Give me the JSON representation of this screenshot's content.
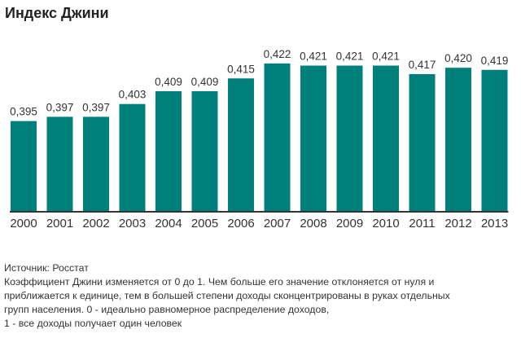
{
  "chart_data": {
    "type": "bar",
    "title": "Индекс Джини",
    "categories": [
      "2000",
      "2001",
      "2002",
      "2003",
      "2004",
      "2005",
      "2006",
      "2007",
      "2008",
      "2009",
      "2010",
      "2011",
      "2012",
      "2013"
    ],
    "values": [
      0.395,
      0.397,
      0.397,
      0.403,
      0.409,
      0.409,
      0.415,
      0.422,
      0.421,
      0.421,
      0.421,
      0.417,
      0.42,
      0.419
    ],
    "value_labels": [
      "0,395",
      "0,397",
      "0,397",
      "0,403",
      "0,409",
      "0,409",
      "0,415",
      "0,422",
      "0,421",
      "0,421",
      "0,421",
      "0,417",
      "0,420",
      "0,419"
    ],
    "xlabel": "",
    "ylabel": "",
    "ylim": [
      0.3525,
      0.43
    ],
    "grid": false,
    "bar_color": "#00807a"
  },
  "notes": {
    "source": "Источник: Росстат",
    "lines": [
      "Коэффициент Джини изменяется от 0 до 1. Чем больше его значение отклоняется от нуля и",
      "приближается к единице, тем в большей степени доходы сконцентрированы в руках отдельных",
      "групп населения. 0 - идеально равномерное распределение доходов,",
      "1 - все доходы получает один человек"
    ]
  }
}
